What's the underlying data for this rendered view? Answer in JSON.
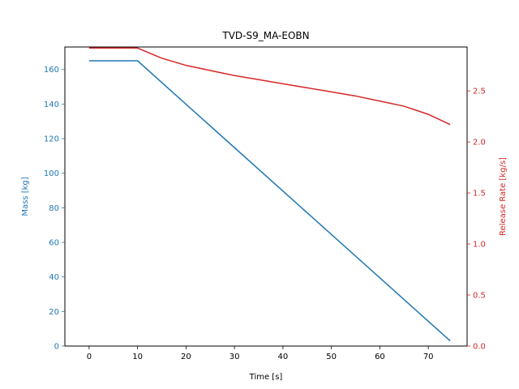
{
  "chart_data": {
    "type": "line",
    "title": "TVD-S9_MA-EOBN",
    "xlabel": "Time [s]",
    "ylabel_left": "Mass [kg]",
    "ylabel_right": "Release Rate [kg/s]",
    "xlim": [
      -5,
      78
    ],
    "ylim_left": [
      0,
      173
    ],
    "ylim_right": [
      0,
      2.93
    ],
    "x_ticks": [
      0,
      10,
      20,
      30,
      40,
      50,
      60,
      70
    ],
    "y_left_ticks": [
      0,
      20,
      40,
      60,
      80,
      100,
      120,
      140,
      160
    ],
    "y_right_ticks": [
      0.0,
      0.5,
      1.0,
      1.5,
      2.0,
      2.5
    ],
    "y_right_tick_labels": [
      "0.0",
      "0.5",
      "1.0",
      "1.5",
      "2.0",
      "2.5"
    ],
    "grid": false,
    "colors": {
      "left_axis": "#1f77b4",
      "right_axis": "#d62728",
      "axes": "#000000"
    },
    "series": [
      {
        "axis": "left",
        "color": "#1f77b4",
        "x": [
          0,
          10,
          74.5
        ],
        "y": [
          165,
          165,
          3
        ]
      },
      {
        "axis": "right",
        "color": "#d62728",
        "x": [
          0,
          10,
          12,
          15,
          20,
          25,
          30,
          35,
          40,
          45,
          50,
          55,
          60,
          65,
          70,
          74.5
        ],
        "y": [
          2.92,
          2.92,
          2.88,
          2.82,
          2.75,
          2.7,
          2.65,
          2.61,
          2.57,
          2.53,
          2.49,
          2.45,
          2.4,
          2.35,
          2.27,
          2.17
        ]
      }
    ]
  }
}
